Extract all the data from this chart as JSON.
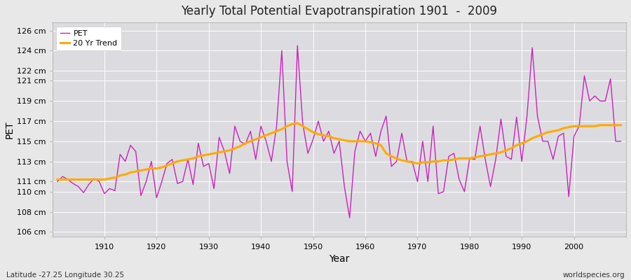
{
  "title": "Yearly Total Potential Evapotranspiration 1901  -  2009",
  "xlabel": "Year",
  "ylabel": "PET",
  "subtitle": "Latitude -27.25 Longitude 30.25",
  "watermark": "worldspecies.org",
  "pet_color": "#cc22bb",
  "trend_color": "#ffaa00",
  "fig_facecolor": "#e8e8e8",
  "plot_facecolor": "#dcdce0",
  "ylim": [
    105.5,
    126.8
  ],
  "yticks": [
    106,
    108,
    110,
    111,
    113,
    115,
    117,
    119,
    121,
    122,
    124,
    126
  ],
  "ytick_labels": [
    "106 cm",
    "108 cm",
    "110 cm",
    "111 cm",
    "113 cm",
    "115 cm",
    "117 cm",
    "119 cm",
    "121 cm",
    "122 cm",
    "124 cm",
    "126 cm"
  ],
  "xlim": [
    1900,
    2010
  ],
  "xticks": [
    1910,
    1920,
    1930,
    1940,
    1950,
    1960,
    1970,
    1980,
    1990,
    2000
  ],
  "years": [
    1901,
    1902,
    1903,
    1904,
    1905,
    1906,
    1907,
    1908,
    1909,
    1910,
    1911,
    1912,
    1913,
    1914,
    1915,
    1916,
    1917,
    1918,
    1919,
    1920,
    1921,
    1922,
    1923,
    1924,
    1925,
    1926,
    1927,
    1928,
    1929,
    1930,
    1931,
    1932,
    1933,
    1934,
    1935,
    1936,
    1937,
    1938,
    1939,
    1940,
    1941,
    1942,
    1943,
    1944,
    1945,
    1946,
    1947,
    1948,
    1949,
    1950,
    1951,
    1952,
    1953,
    1954,
    1955,
    1956,
    1957,
    1958,
    1959,
    1960,
    1961,
    1962,
    1963,
    1964,
    1965,
    1966,
    1967,
    1968,
    1969,
    1970,
    1971,
    1972,
    1973,
    1974,
    1975,
    1976,
    1977,
    1978,
    1979,
    1980,
    1981,
    1982,
    1983,
    1984,
    1985,
    1986,
    1987,
    1988,
    1989,
    1990,
    1991,
    1992,
    1993,
    1994,
    1995,
    1996,
    1997,
    1998,
    1999,
    2000,
    2001,
    2002,
    2003,
    2004,
    2005,
    2006,
    2007,
    2008,
    2009
  ],
  "pet_values": [
    111.0,
    111.5,
    111.2,
    110.8,
    110.5,
    109.9,
    110.7,
    111.3,
    111.0,
    109.8,
    110.3,
    110.1,
    113.7,
    113.0,
    114.6,
    114.0,
    109.6,
    111.0,
    113.0,
    109.4,
    111.0,
    112.8,
    113.2,
    110.8,
    111.0,
    113.2,
    110.7,
    114.8,
    112.5,
    112.8,
    110.3,
    115.4,
    114.0,
    111.8,
    116.5,
    115.0,
    114.7,
    116.0,
    113.2,
    116.5,
    115.0,
    113.0,
    116.5,
    124.0,
    113.0,
    110.0,
    124.5,
    116.8,
    113.8,
    115.2,
    117.0,
    115.0,
    116.0,
    113.8,
    115.0,
    110.5,
    107.4,
    114.0,
    116.0,
    115.0,
    115.8,
    113.5,
    116.0,
    117.5,
    112.5,
    113.0,
    115.8,
    113.0,
    113.0,
    111.0,
    115.0,
    111.0,
    116.5,
    109.8,
    110.0,
    113.5,
    113.8,
    111.2,
    110.0,
    113.3,
    113.2,
    116.5,
    113.2,
    110.5,
    113.2,
    117.2,
    113.5,
    113.2,
    117.4,
    113.0,
    117.5,
    124.3,
    117.5,
    115.0,
    115.0,
    113.2,
    115.5,
    115.8,
    109.5,
    115.5,
    116.5,
    121.5,
    119.0,
    119.5,
    119.0,
    119.0,
    121.2,
    115.0,
    115.0
  ],
  "trend_values": [
    111.2,
    111.2,
    111.2,
    111.2,
    111.2,
    111.2,
    111.2,
    111.2,
    111.2,
    111.2,
    111.3,
    111.4,
    111.6,
    111.7,
    111.9,
    112.0,
    112.1,
    112.2,
    112.3,
    112.3,
    112.4,
    112.6,
    112.8,
    113.0,
    113.1,
    113.2,
    113.3,
    113.5,
    113.6,
    113.7,
    113.8,
    113.9,
    114.0,
    114.1,
    114.3,
    114.5,
    114.8,
    115.0,
    115.2,
    115.4,
    115.6,
    115.8,
    116.0,
    116.2,
    116.5,
    116.7,
    116.8,
    116.5,
    116.2,
    115.9,
    115.7,
    115.6,
    115.5,
    115.3,
    115.2,
    115.1,
    115.0,
    115.0,
    115.0,
    115.0,
    114.9,
    114.8,
    114.6,
    113.8,
    113.5,
    113.3,
    113.1,
    113.0,
    112.9,
    112.8,
    112.9,
    112.9,
    113.0,
    113.0,
    113.1,
    113.1,
    113.2,
    113.3,
    113.3,
    113.3,
    113.4,
    113.5,
    113.6,
    113.7,
    113.8,
    113.9,
    114.1,
    114.3,
    114.6,
    114.8,
    115.0,
    115.3,
    115.5,
    115.7,
    115.9,
    116.0,
    116.1,
    116.3,
    116.4,
    116.5,
    116.5,
    116.5,
    116.5,
    116.5,
    116.6,
    116.6,
    116.6,
    116.6,
    116.6
  ]
}
